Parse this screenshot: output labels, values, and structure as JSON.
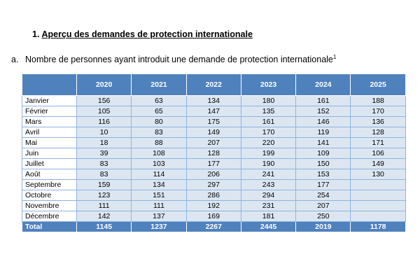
{
  "heading": {
    "number": "1.",
    "text": "Aperçu des demandes de protection internationale"
  },
  "subheading": {
    "letter": "a.",
    "text": "Nombre de personnes ayant introduit une demande de protection internationale",
    "footnote": "1"
  },
  "table": {
    "years": [
      "2020",
      "2021",
      "2022",
      "2023",
      "2024",
      "2025"
    ],
    "rows": [
      {
        "month": "Janvier",
        "values": [
          "156",
          "63",
          "134",
          "180",
          "161",
          "188"
        ]
      },
      {
        "month": "Février",
        "values": [
          "105",
          "65",
          "147",
          "135",
          "152",
          "170"
        ]
      },
      {
        "month": "Mars",
        "values": [
          "116",
          "80",
          "175",
          "161",
          "146",
          "136"
        ]
      },
      {
        "month": "Avril",
        "values": [
          "10",
          "83",
          "149",
          "170",
          "119",
          "128"
        ]
      },
      {
        "month": "Mai",
        "values": [
          "18",
          "88",
          "207",
          "220",
          "141",
          "171"
        ]
      },
      {
        "month": "Juin",
        "values": [
          "39",
          "108",
          "128",
          "199",
          "109",
          "106"
        ]
      },
      {
        "month": "Juillet",
        "values": [
          "83",
          "103",
          "177",
          "190",
          "150",
          "149"
        ]
      },
      {
        "month": "Août",
        "values": [
          "83",
          "114",
          "206",
          "241",
          "153",
          "130"
        ]
      },
      {
        "month": "Septembre",
        "values": [
          "159",
          "134",
          "297",
          "243",
          "177",
          ""
        ]
      },
      {
        "month": "Octobre",
        "values": [
          "123",
          "151",
          "286",
          "294",
          "254",
          ""
        ]
      },
      {
        "month": "Novembre",
        "values": [
          "111",
          "111",
          "192",
          "231",
          "207",
          ""
        ]
      },
      {
        "month": "Décembre",
        "values": [
          "142",
          "137",
          "169",
          "181",
          "250",
          ""
        ]
      }
    ],
    "total": {
      "label": "Total",
      "values": [
        "1145",
        "1237",
        "2267",
        "2445",
        "2019",
        "1178"
      ]
    }
  },
  "colors": {
    "header_fill": "#4f81bd",
    "cell_fill": "#dce6f1",
    "border": "#8db3e2"
  }
}
